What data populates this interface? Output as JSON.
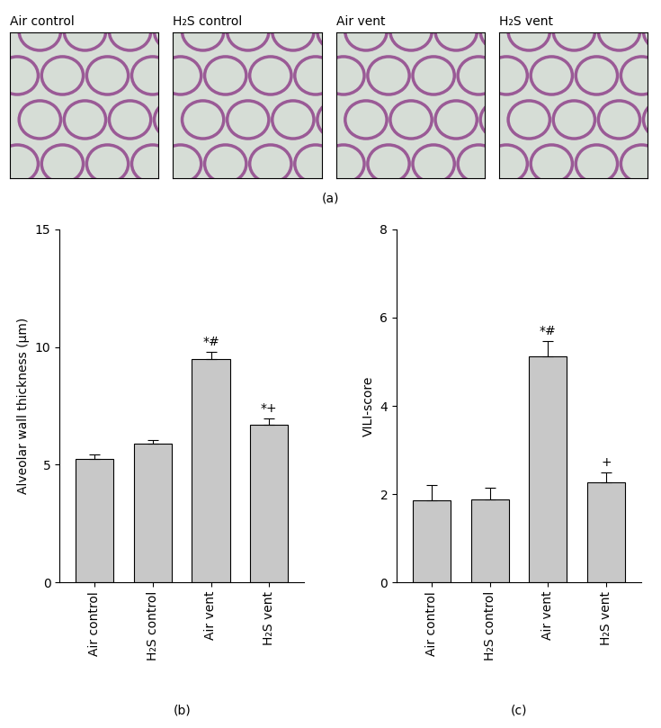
{
  "image_panel": {
    "label": "(a)",
    "titles": [
      "Air control",
      "H₂S control",
      "Air vent",
      "H₂S vent"
    ]
  },
  "chart_data": [
    {
      "type": "bar",
      "label": "(b)",
      "y_label": "Alveolar wall thickness (μm)",
      "categories": [
        "Air control",
        "H₂S control",
        "Air vent",
        "H₂S vent"
      ],
      "values": [
        5.25,
        5.9,
        9.5,
        6.7
      ],
      "errors": [
        0.2,
        0.15,
        0.3,
        0.25
      ],
      "annotations": [
        {
          "category": "Air vent",
          "text": "*#"
        },
        {
          "category": "H₂S vent",
          "text": "*+"
        }
      ],
      "color": "#c8c8c8",
      "ylim": [
        0,
        15
      ],
      "yticks": [
        0,
        5,
        10,
        15
      ]
    },
    {
      "type": "bar",
      "label": "(c)",
      "y_label": "VILI-score",
      "categories": [
        "Air control",
        "H₂S control",
        "Air vent",
        "H₂S vent"
      ],
      "values": [
        1.85,
        1.88,
        5.12,
        2.27
      ],
      "errors": [
        0.35,
        0.27,
        0.35,
        0.22
      ],
      "annotations": [
        {
          "category": "Air vent",
          "text": "*#"
        },
        {
          "category": "H₂S vent",
          "text": "+"
        }
      ],
      "color": "#c8c8c8",
      "ylim": [
        0,
        8
      ],
      "yticks": [
        0,
        2,
        4,
        6,
        8
      ]
    }
  ]
}
